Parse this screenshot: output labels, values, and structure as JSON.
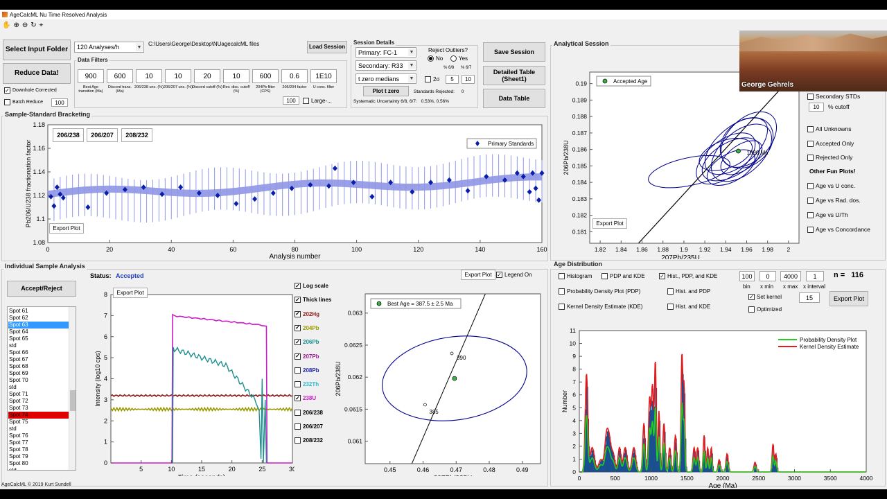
{
  "window": {
    "title": "AgeCalcML Nu Time Resolved Analysis",
    "status": "AgeCalcML © 2019 Kurt Sundell"
  },
  "toolbar": {
    "icons": [
      "hand-icon",
      "zoom-in-icon",
      "zoom-out-icon",
      "rotate-icon",
      "datatip-icon"
    ]
  },
  "controls": {
    "select_input": "Select Input Folder",
    "reduce": "Reduce Data!",
    "downhole": "Downhole Corrected",
    "batch": "Batch Reduce",
    "batch_val": "100",
    "analyses_rate": "120 Analyses/h",
    "path": "C:\\Users\\George\\Desktop\\NUagecalcML files",
    "load_session": "Load Session",
    "data_filters": "Data Filters",
    "filters": [
      {
        "value": "900",
        "label": "Best Age transition (Ma)"
      },
      {
        "value": "600",
        "label": "Discord trans. (Ma)"
      },
      {
        "value": "10",
        "label": "206/238 unc. (%)"
      },
      {
        "value": "10",
        "label": "206/207 unc. (%)"
      },
      {
        "value": "20",
        "label": "Discord cutoff (%)"
      },
      {
        "value": "10",
        "label": "Rev. disc. cutoff (%)"
      },
      {
        "value": "600",
        "label": "204Pb filter (CPS)"
      },
      {
        "value": "0.6",
        "label": "206/204 factor"
      },
      {
        "value": "1E10",
        "label": "U conc. filter"
      }
    ],
    "large_val": "100",
    "large_label": "Large-..."
  },
  "session": {
    "title": "Session Details",
    "primary": "Primary: FC-1",
    "secondary": "Secondary: R33",
    "tzero": "t zero medians",
    "plot_tzero": "Plot t zero",
    "reject_label": "Reject Outliers?",
    "no": "No",
    "yes": "Yes",
    "pct68": "% 6/8",
    "pct67": "% 6/7",
    "two_sigma": "2σ",
    "v5": "5",
    "v10": "10",
    "std_rejected": "Standards Rejected:",
    "std_rejected_val": "0",
    "sys_unc": "Systematic Uncertainty 6/8, 6/7:",
    "sys_vals": "0.53%, 0.56%",
    "save": "Save Session",
    "detailed": "Detailed Table (Sheet1)",
    "data_table": "Data Table"
  },
  "bracket": {
    "title": "Sample-Standard Bracketing",
    "tabs": [
      "206/238",
      "206/207",
      "208/232"
    ],
    "legend": "Primary Standards",
    "export": "Export Plot",
    "ylabel": "Pb206/U238 fractionation factor",
    "xlabel": "Analysis number",
    "yticks": [
      "1.08",
      "1.1",
      "1.12",
      "1.14",
      "1.16",
      "1.18"
    ],
    "xticks": [
      "0",
      "20",
      "40",
      "60",
      "80",
      "100",
      "120",
      "140",
      "160"
    ]
  },
  "analytical": {
    "title": "Analytical Session",
    "legend": "Accepted Age",
    "export": "Export Plot",
    "xlabel": "207Pb/235U",
    "ylabel": "206Pb/238U",
    "xticks": [
      "1.82",
      "1.84",
      "1.86",
      "1.88",
      "1.9",
      "1.92",
      "1.94",
      "1.96",
      "1.98",
      "2"
    ],
    "yticks": [
      "0.181",
      "0.182",
      "0.183",
      "0.184",
      "0.185",
      "0.186",
      "0.187",
      "0.188",
      "0.189",
      "0.19"
    ],
    "annotation": "1090 Ma",
    "options": {
      "secondary_stds": "Secondary STDs",
      "cutoff_val": "10",
      "cutoff_lbl": "% cutoff",
      "all_unknowns": "All Unknowns",
      "accepted_only": "Accepted Only",
      "rejected_only": "Rejected Only",
      "fun": "Other Fun Plots!",
      "u_conc": "Age vs U conc.",
      "rad_dos": "Age vs Rad. dos.",
      "u_th": "Age vs U/Th",
      "concordance": "Age vs Concordance"
    }
  },
  "presenter": {
    "name": "George Gehrels"
  },
  "individual": {
    "title": "Individual Sample Analysis",
    "accept_reject": "Accept/Reject",
    "status_label": "Status:",
    "status_value": "Accepted",
    "spots": [
      "Spot 61",
      "Spot 62",
      "Spot 63",
      "Spot 64",
      "Spot 65",
      "std",
      "Spot 66",
      "Spot 67",
      "Spot 68",
      "Spot 69",
      "Spot 70",
      "std",
      "Spot 71",
      "Spot 72",
      "Spot 73",
      "Spot 74",
      "Spot 75",
      "std",
      "Spot 76",
      "Spot 77",
      "Spot 78",
      "Spot 79",
      "Spot 80",
      "std"
    ],
    "selected": 2,
    "rejected": 15,
    "export": "Export Plot",
    "ylabel": "Intensity (log10 cps)",
    "xlabel": "Time (seconds)",
    "yticks": [
      "0",
      "1",
      "2",
      "3",
      "4",
      "5",
      "6",
      "7",
      "8"
    ],
    "xticks": [
      "5",
      "10",
      "15",
      "20",
      "25",
      "30"
    ],
    "channels": [
      {
        "label": "Log scale",
        "color": "#000000",
        "checked": true
      },
      {
        "label": "Thick lines",
        "color": "#000000",
        "checked": true
      },
      {
        "label": "202Hg",
        "color": "#8b1a1a",
        "checked": true
      },
      {
        "label": "204Pb",
        "color": "#9a9a00",
        "checked": true
      },
      {
        "label": "206Pb",
        "color": "#1f8f8f",
        "checked": true
      },
      {
        "label": "207Pb",
        "color": "#a0159a",
        "checked": true
      },
      {
        "label": "208Pb",
        "color": "#2424a8",
        "checked": false
      },
      {
        "label": "232Th",
        "color": "#26bcd0",
        "checked": false
      },
      {
        "label": "238U",
        "color": "#c81cc8",
        "checked": true
      },
      {
        "label": "206/238",
        "color": "#000000",
        "checked": false
      },
      {
        "label": "206/207",
        "color": "#000000",
        "checked": false
      },
      {
        "label": "208/232",
        "color": "#000000",
        "checked": false
      }
    ],
    "conc_export": "Export Plot",
    "legend_on": "Legend On",
    "conc_legend": "Best Age = 387.5 ± 2.5 Ma",
    "conc_xlabel": "207Pb/235U",
    "conc_ylabel": "206Pb/238U",
    "conc_xticks": [
      "0.45",
      "0.46",
      "0.47",
      "0.48",
      "0.49"
    ],
    "conc_yticks": [
      "0.061",
      "0.0615",
      "0.062",
      "0.0625",
      "0.063"
    ],
    "age_390": "390",
    "age_385": "385"
  },
  "distribution": {
    "title": "Age Distribution",
    "histogram": "Histogram",
    "pdp_kde": "PDP and KDE",
    "hist_pdp_kde": "Hist., PDP, and KDE",
    "pdp": "Probability Density Plot (PDP)",
    "hist_pdp": "Hist. and PDP",
    "kde": "Kernel Density Estimate (KDE)",
    "hist_kde": "Hist. and KDE",
    "bin": "100",
    "xmin": "0",
    "xmax": "4000",
    "xint": "1",
    "bin_l": "bin",
    "xmin_l": "x min",
    "xmax_l": "x max",
    "xint_l": "x interval",
    "n_label": "n =",
    "n_val": "116",
    "set_kernel": "Set kernel",
    "kernel_val": "15",
    "optimized": "Optimized",
    "export": "Export Plot",
    "legend_pdp": "Probability Density Plot",
    "legend_kde": "Kernel Density Estimate",
    "ylabel": "Number",
    "xlabel": "Age (Ma)",
    "yticks": [
      "0",
      "1",
      "2",
      "3",
      "4",
      "5",
      "6",
      "7",
      "8",
      "9",
      "10",
      "11"
    ],
    "xticks": [
      "0",
      "500",
      "1000",
      "1500",
      "2000",
      "2500",
      "3000",
      "3500",
      "4000"
    ]
  },
  "colors": {
    "blue": "#00008b",
    "marker": "#0a1fa8",
    "band": "#8f96e6",
    "accent": "#1f3fbf",
    "select": "#3399ff",
    "reject": "#e00000",
    "pdp": "#22cc22",
    "kde": "#e61a1a",
    "accepted": "#1f3fbf"
  }
}
